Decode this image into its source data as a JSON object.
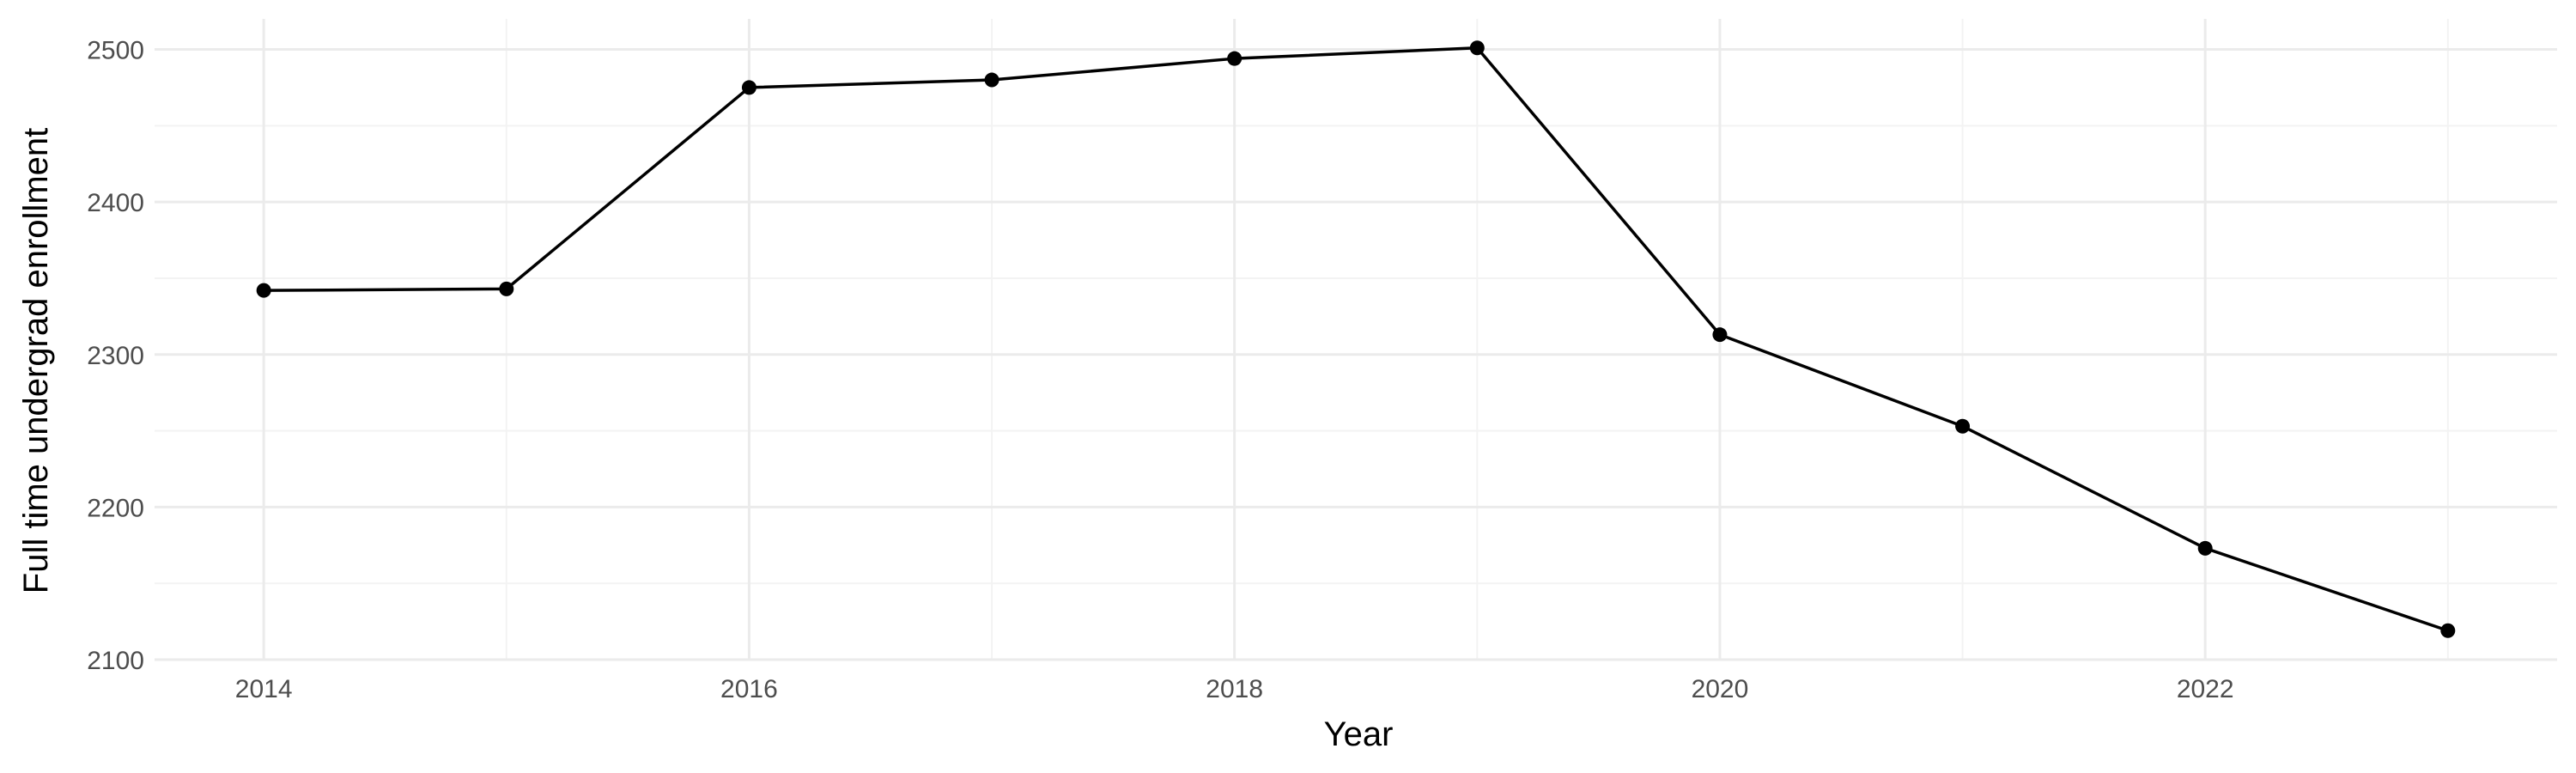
{
  "chart_data": {
    "type": "line",
    "title": "",
    "xlabel": "Year",
    "ylabel": "Full time undergrad enrollment",
    "x": [
      2014,
      2015,
      2016,
      2017,
      2018,
      2019,
      2020,
      2021,
      2022,
      2023
    ],
    "series": [
      {
        "values": [
          2342,
          2343,
          2475,
          2480,
          2494,
          2501,
          2313,
          2253,
          2173,
          2119
        ]
      }
    ],
    "xlim": [
      2013.55,
      2023.45
    ],
    "ylim": [
      2100,
      2520
    ],
    "xticks": [
      2014,
      2016,
      2018,
      2020,
      2022
    ],
    "xtick_labels": [
      "2014",
      "2016",
      "2018",
      "2020",
      "2022"
    ],
    "yticks": [
      2100,
      2200,
      2300,
      2400,
      2500
    ],
    "ytick_labels": [
      "2100",
      "2200",
      "2300",
      "2400",
      "2500"
    ],
    "grid": true,
    "legend": "none",
    "colors": {
      "line": "#000000",
      "point": "#000000",
      "grid_major": "#ebebeb",
      "grid_minor": "#f3f3f3"
    }
  }
}
